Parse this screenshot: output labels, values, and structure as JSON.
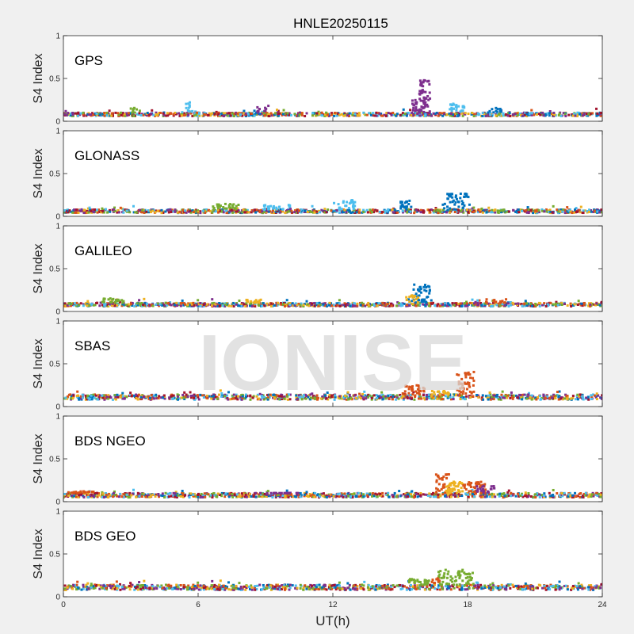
{
  "figure": {
    "title": "HNLE20250115",
    "xlabel": "UT(h)",
    "watermark": "IONISE"
  },
  "chart_data": {
    "type": "scatter",
    "xlim": [
      0,
      24
    ],
    "ylim": [
      0,
      1
    ],
    "xticks": [
      0,
      6,
      12,
      18,
      24
    ],
    "yticks": [
      0,
      0.5,
      1
    ],
    "ylabel": "S4 Index",
    "colors": [
      "#0072BD",
      "#D95319",
      "#EDB120",
      "#7E2F8E",
      "#77AC30",
      "#4DBEEE",
      "#A2142F"
    ],
    "panels": [
      {
        "label": "GPS",
        "baseline": [
          0.06,
          0.1
        ],
        "features": [
          {
            "x": 16.1,
            "y": 0.45,
            "w": 0.25,
            "color": "#7E2F8E",
            "n": 45
          },
          {
            "x": 15.8,
            "y": 0.25,
            "w": 0.3,
            "color": "#7E2F8E",
            "n": 25
          },
          {
            "x": 17.6,
            "y": 0.2,
            "w": 0.4,
            "color": "#4DBEEE",
            "n": 25
          },
          {
            "x": 5.6,
            "y": 0.22,
            "w": 0.15,
            "color": "#4DBEEE",
            "n": 12
          },
          {
            "x": 8.9,
            "y": 0.18,
            "w": 0.3,
            "color": "#7E2F8E",
            "n": 10
          },
          {
            "x": 3.3,
            "y": 0.15,
            "w": 0.3,
            "color": "#77AC30",
            "n": 10
          },
          {
            "x": 19.2,
            "y": 0.15,
            "w": 0.3,
            "color": "#0072BD",
            "n": 12
          }
        ]
      },
      {
        "label": "GLONASS",
        "baseline": [
          0.04,
          0.08
        ],
        "features": [
          {
            "x": 17.5,
            "y": 0.25,
            "w": 0.6,
            "color": "#0072BD",
            "n": 45
          },
          {
            "x": 15.2,
            "y": 0.18,
            "w": 0.3,
            "color": "#0072BD",
            "n": 20
          },
          {
            "x": 12.5,
            "y": 0.18,
            "w": 0.5,
            "color": "#4DBEEE",
            "n": 25
          },
          {
            "x": 7.2,
            "y": 0.14,
            "w": 0.6,
            "color": "#77AC30",
            "n": 25
          },
          {
            "x": 9.5,
            "y": 0.14,
            "w": 0.6,
            "color": "#4DBEEE",
            "n": 25
          }
        ]
      },
      {
        "label": "GALILEO",
        "baseline": [
          0.06,
          0.1
        ],
        "features": [
          {
            "x": 16.0,
            "y": 0.3,
            "w": 0.4,
            "color": "#0072BD",
            "n": 40
          },
          {
            "x": 15.5,
            "y": 0.18,
            "w": 0.3,
            "color": "#EDB120",
            "n": 15
          },
          {
            "x": 2.2,
            "y": 0.15,
            "w": 0.5,
            "color": "#77AC30",
            "n": 20
          },
          {
            "x": 8.5,
            "y": 0.14,
            "w": 0.5,
            "color": "#EDB120",
            "n": 15
          },
          {
            "x": 19.3,
            "y": 0.14,
            "w": 0.5,
            "color": "#D95319",
            "n": 15
          }
        ]
      },
      {
        "label": "SBAS",
        "baseline": [
          0.08,
          0.14
        ],
        "features": [
          {
            "x": 17.9,
            "y": 0.38,
            "w": 0.4,
            "color": "#D95319",
            "n": 45
          },
          {
            "x": 15.6,
            "y": 0.24,
            "w": 0.5,
            "color": "#D95319",
            "n": 35
          },
          {
            "x": 16.8,
            "y": 0.18,
            "w": 0.4,
            "color": "#EDB120",
            "n": 15
          }
        ]
      },
      {
        "label": "BDS NGEO",
        "baseline": [
          0.05,
          0.1
        ],
        "features": [
          {
            "x": 16.9,
            "y": 0.3,
            "w": 0.3,
            "color": "#D95319",
            "n": 30
          },
          {
            "x": 17.4,
            "y": 0.22,
            "w": 0.4,
            "color": "#EDB120",
            "n": 40
          },
          {
            "x": 18.3,
            "y": 0.22,
            "w": 0.5,
            "color": "#D95319",
            "n": 40
          },
          {
            "x": 18.8,
            "y": 0.18,
            "w": 0.4,
            "color": "#7E2F8E",
            "n": 20
          },
          {
            "x": 0.8,
            "y": 0.12,
            "w": 0.6,
            "color": "#D95319",
            "n": 20
          },
          {
            "x": 9.5,
            "y": 0.1,
            "w": 1.0,
            "color": "#7E2F8E",
            "n": 20
          }
        ]
      },
      {
        "label": "BDS GEO",
        "baseline": [
          0.08,
          0.14
        ],
        "features": [
          {
            "x": 17.5,
            "y": 0.3,
            "w": 0.8,
            "color": "#77AC30",
            "n": 60
          },
          {
            "x": 15.8,
            "y": 0.2,
            "w": 0.5,
            "color": "#77AC30",
            "n": 25
          },
          {
            "x": 16.6,
            "y": 0.22,
            "w": 0.3,
            "color": "#D95319",
            "n": 10
          }
        ]
      }
    ]
  }
}
